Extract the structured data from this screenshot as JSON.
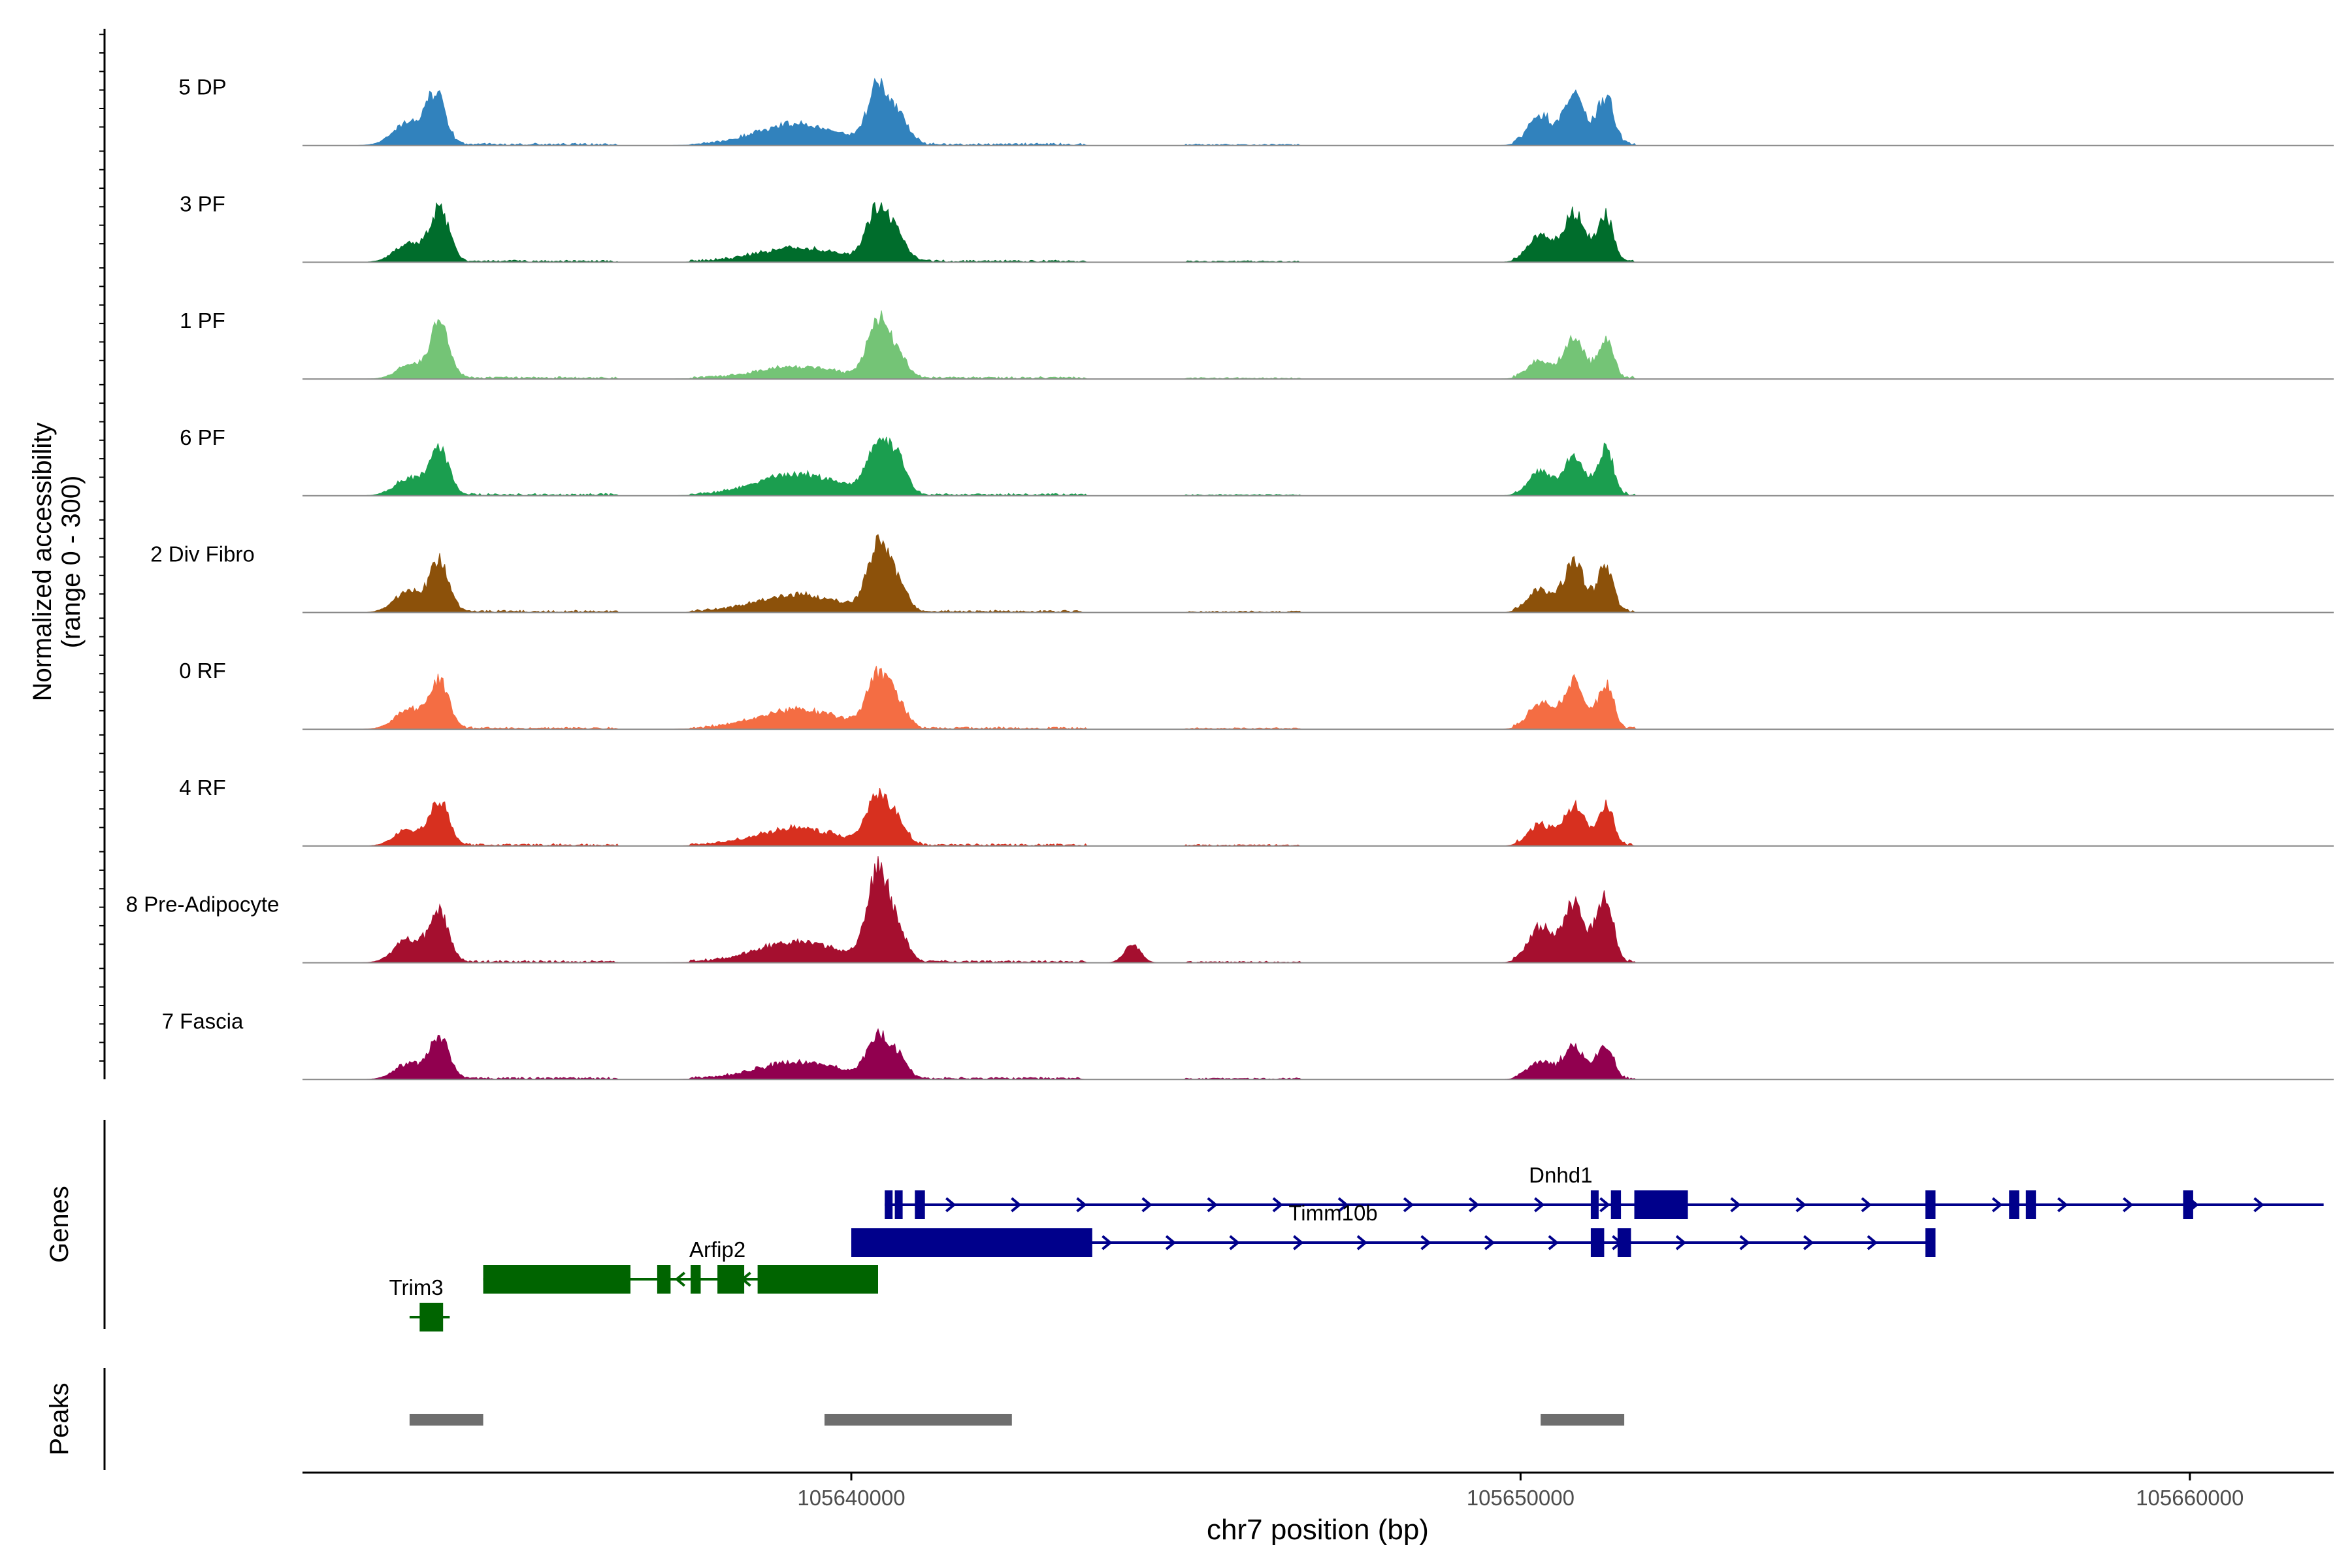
{
  "chart_data": {
    "type": "area",
    "title": "",
    "ylabel_line1": "Normalized accessibility",
    "ylabel_line2": "(range 0 - 300)",
    "genes_label": "Genes",
    "peaks_label": "Peaks",
    "xlabel": "chr7 position (bp)",
    "xlim": [
      105631800,
      105662150
    ],
    "ylim": [
      0,
      300
    ],
    "xticks": [
      {
        "value": 105640000,
        "label": "105640000"
      },
      {
        "value": 105650000,
        "label": "105650000"
      },
      {
        "value": 105660000,
        "label": "105660000"
      }
    ],
    "noise": [
      {
        "start": 105633200,
        "end": 105636500,
        "level": 6
      },
      {
        "start": 105637600,
        "end": 105643500,
        "level": 6
      },
      {
        "start": 105645000,
        "end": 105646700,
        "level": 4
      },
      {
        "start": 105649900,
        "end": 105651700,
        "level": 8
      }
    ],
    "tracks": [
      {
        "name": "5 DP",
        "color": "#3182bd",
        "peaks": [
          [
            105633400,
            60,
            240
          ],
          [
            105633800,
            125,
            140
          ],
          [
            105639200,
            55,
            600
          ],
          [
            105640400,
            145,
            150
          ],
          [
            105640700,
            70,
            160
          ],
          [
            105650300,
            75,
            180
          ],
          [
            105650800,
            125,
            150
          ],
          [
            105651200,
            50,
            140
          ],
          [
            105651300,
            85,
            110
          ]
        ]
      },
      {
        "name": "3 PF",
        "color": "#006d2c",
        "peaks": [
          [
            105633400,
            50,
            220
          ],
          [
            105633850,
            135,
            140
          ],
          [
            105639200,
            35,
            600
          ],
          [
            105640400,
            140,
            160
          ],
          [
            105640700,
            60,
            140
          ],
          [
            105650300,
            70,
            180
          ],
          [
            105650800,
            130,
            150
          ],
          [
            105651200,
            50,
            120
          ],
          [
            105651300,
            80,
            100
          ]
        ]
      },
      {
        "name": "1 PF",
        "color": "#74c476",
        "peaks": [
          [
            105633400,
            35,
            200
          ],
          [
            105633850,
            145,
            140
          ],
          [
            105639200,
            30,
            600
          ],
          [
            105640400,
            150,
            160
          ],
          [
            105640700,
            55,
            140
          ],
          [
            105650300,
            45,
            180
          ],
          [
            105650800,
            105,
            150
          ],
          [
            105651200,
            35,
            120
          ],
          [
            105651300,
            75,
            100
          ]
        ]
      },
      {
        "name": "6 PF",
        "color": "#1b9e4f",
        "peaks": [
          [
            105633400,
            45,
            220
          ],
          [
            105633850,
            120,
            140
          ],
          [
            105639200,
            55,
            600
          ],
          [
            105640400,
            140,
            160
          ],
          [
            105640700,
            85,
            140
          ],
          [
            105650300,
            60,
            180
          ],
          [
            105650800,
            100,
            150
          ],
          [
            105651200,
            45,
            120
          ],
          [
            105651300,
            85,
            100
          ]
        ]
      },
      {
        "name": "2 Div Fibro",
        "color": "#8c510a",
        "peaks": [
          [
            105633400,
            55,
            220
          ],
          [
            105633850,
            130,
            140
          ],
          [
            105639200,
            45,
            600
          ],
          [
            105640400,
            175,
            160
          ],
          [
            105640700,
            65,
            140
          ],
          [
            105650300,
            60,
            180
          ],
          [
            105650800,
            130,
            150
          ],
          [
            105651200,
            50,
            120
          ],
          [
            105651300,
            80,
            100
          ]
        ]
      },
      {
        "name": "0 RF",
        "color": "#f46d43",
        "peaks": [
          [
            105633400,
            50,
            220
          ],
          [
            105633850,
            125,
            140
          ],
          [
            105639200,
            50,
            600
          ],
          [
            105640400,
            140,
            160
          ],
          [
            105640700,
            60,
            140
          ],
          [
            105650300,
            65,
            180
          ],
          [
            105650800,
            125,
            150
          ],
          [
            105651200,
            45,
            120
          ],
          [
            105651300,
            85,
            100
          ]
        ]
      },
      {
        "name": "4 RF",
        "color": "#d7301f",
        "peaks": [
          [
            105633400,
            40,
            220
          ],
          [
            105633850,
            115,
            140
          ],
          [
            105639200,
            45,
            600
          ],
          [
            105640400,
            130,
            160
          ],
          [
            105640700,
            55,
            140
          ],
          [
            105650300,
            55,
            180
          ],
          [
            105650800,
            105,
            150
          ],
          [
            105651200,
            45,
            120
          ],
          [
            105651300,
            75,
            100
          ]
        ]
      },
      {
        "name": "8 Pre-Adipocyte",
        "color": "#a50f2f",
        "peaks": [
          [
            105633400,
            60,
            220
          ],
          [
            105633850,
            130,
            140
          ],
          [
            105639200,
            55,
            600
          ],
          [
            105640400,
            240,
            160
          ],
          [
            105640700,
            70,
            140
          ],
          [
            105644200,
            50,
            120
          ],
          [
            105650300,
            90,
            180
          ],
          [
            105650800,
            160,
            150
          ],
          [
            105651200,
            90,
            120
          ],
          [
            105651300,
            110,
            100
          ]
        ]
      },
      {
        "name": "7 Fascia",
        "color": "#91004f",
        "peaks": [
          [
            105633400,
            40,
            220
          ],
          [
            105633850,
            110,
            140
          ],
          [
            105639200,
            45,
            600
          ],
          [
            105640400,
            110,
            160
          ],
          [
            105640700,
            50,
            140
          ],
          [
            105650300,
            45,
            180
          ],
          [
            105650800,
            90,
            150
          ],
          [
            105651200,
            40,
            120
          ],
          [
            105651300,
            60,
            100
          ]
        ]
      }
    ],
    "genes": [
      {
        "name": "Dnhd1",
        "row": 0,
        "strand": "+",
        "color": "#00008b",
        "start": 105640500,
        "end": 105662000,
        "label_pos": 105650600,
        "exons": [
          [
            105640500,
            105640550
          ],
          [
            105640650,
            105640750
          ],
          [
            105640950,
            105641100
          ],
          [
            105651050,
            105651150
          ],
          [
            105651350,
            105651500
          ],
          [
            105651700,
            105652500
          ],
          [
            105656050,
            105656200
          ],
          [
            105657300,
            105657450
          ],
          [
            105657550,
            105657700
          ],
          [
            105659900,
            105660050
          ]
        ]
      },
      {
        "name": "Timm10b",
        "row": 1,
        "strand": "+",
        "color": "#00008b",
        "start": 105640000,
        "end": 105656200,
        "label_pos": 105647200,
        "exons": [
          [
            105640000,
            105643600
          ],
          [
            105651050,
            105651250
          ],
          [
            105651450,
            105651650
          ],
          [
            105656050,
            105656200
          ]
        ]
      },
      {
        "name": "Arfip2",
        "row": 2,
        "strand": "-",
        "color": "#006400",
        "start": 105634500,
        "end": 105640400,
        "label_pos": 105638000,
        "exons": [
          [
            105634500,
            105636700
          ],
          [
            105637100,
            105637300
          ],
          [
            105637600,
            105637750
          ],
          [
            105638000,
            105638400
          ],
          [
            105638600,
            105640300
          ],
          [
            105640150,
            105640400
          ]
        ]
      },
      {
        "name": "Trim3",
        "row": 3,
        "strand": "-",
        "color": "#006400",
        "start": 105633400,
        "end": 105634000,
        "label_pos": 105633500,
        "exons": [
          [
            105633550,
            105633900
          ]
        ]
      }
    ],
    "peak_regions": [
      {
        "start": 105633400,
        "end": 105634500
      },
      {
        "start": 105639600,
        "end": 105642400
      },
      {
        "start": 105650300,
        "end": 105651550
      }
    ]
  }
}
